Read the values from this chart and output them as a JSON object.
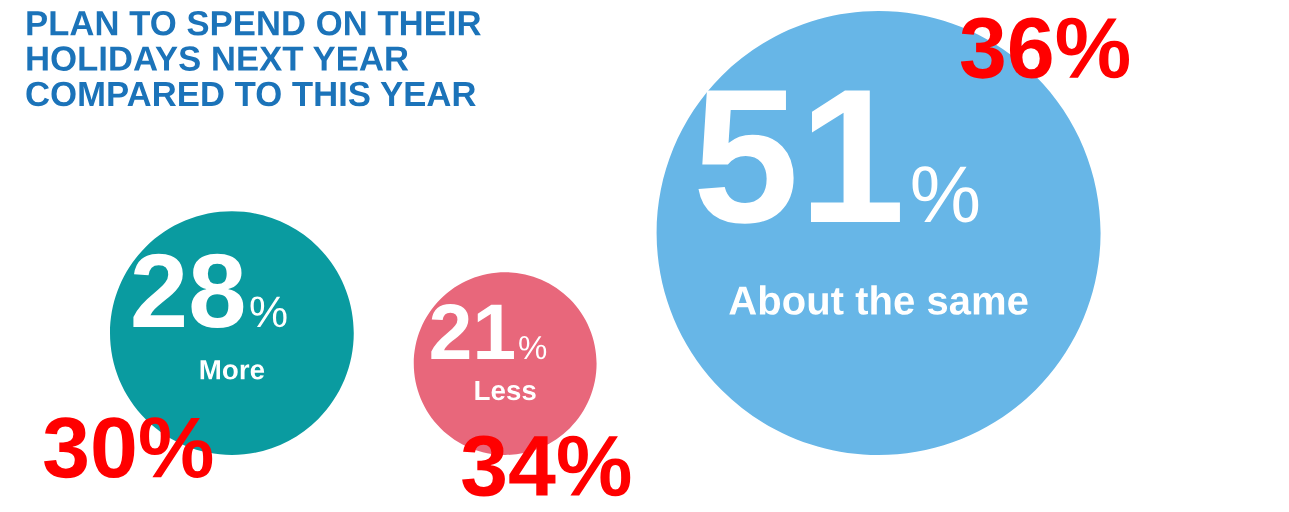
{
  "chart_data": {
    "type": "other",
    "title": "PLAN TO SPEND ON THEIR\nHOLIDAYS NEXT YEAR\nCOMPARED TO THIS YEAR",
    "categories": [
      "More",
      "Less",
      "About the same"
    ],
    "values": [
      28,
      21,
      51
    ],
    "value_labels": [
      "28%",
      "21%",
      "51%"
    ],
    "colors": [
      "#0a9ba0",
      "#e8677b",
      "#67b6e7"
    ],
    "annotations": [
      "30%",
      "34%",
      "36%"
    ]
  }
}
